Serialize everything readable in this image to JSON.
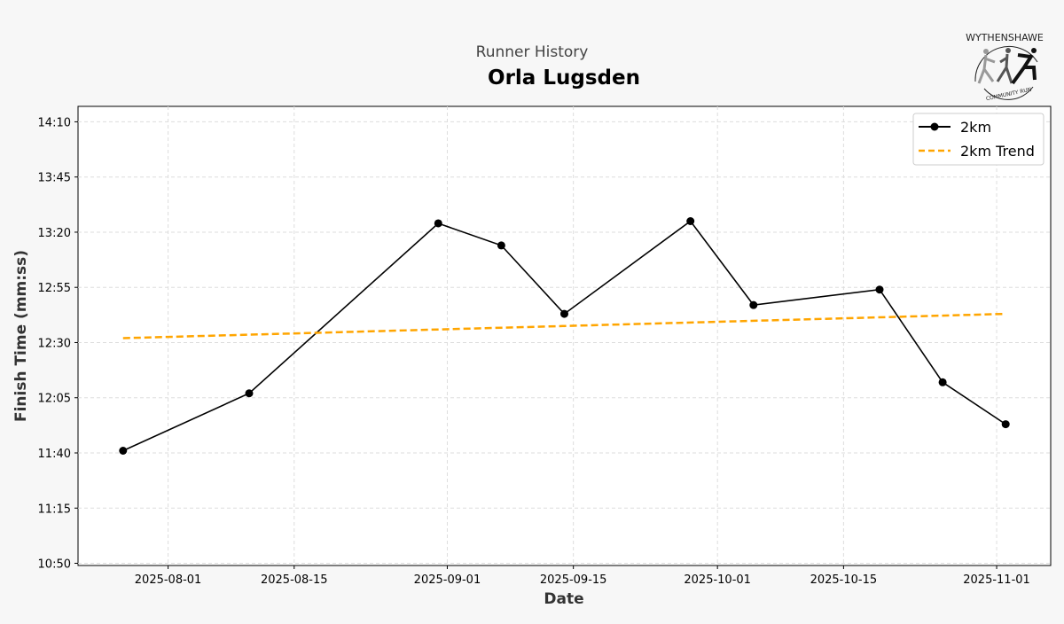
{
  "chart_data": {
    "type": "line",
    "suptitle": "Runner History",
    "title": "Orla Lugsden",
    "xlabel": "Date",
    "ylabel": "Finish Time (mm:ss)",
    "xlim": [
      "2025-07-22",
      "2025-11-07"
    ],
    "ylim": [
      "10:49",
      "14:17"
    ],
    "x_ticks": [
      "2025-08-01",
      "2025-08-15",
      "2025-09-01",
      "2025-09-15",
      "2025-10-01",
      "2025-10-15",
      "2025-11-01"
    ],
    "y_ticks": [
      "10:50",
      "11:15",
      "11:40",
      "12:05",
      "12:30",
      "12:55",
      "13:20",
      "13:45",
      "14:10"
    ],
    "grid": true,
    "legend_position": "top-right",
    "series": [
      {
        "name": "2km",
        "color": "#000000",
        "style": "solid-marker",
        "x": [
          "2025-07-27",
          "2025-08-10",
          "2025-08-31",
          "2025-09-07",
          "2025-09-14",
          "2025-09-28",
          "2025-10-05",
          "2025-10-19",
          "2025-10-26",
          "2025-11-02"
        ],
        "y": [
          "11:41",
          "12:07",
          "13:24",
          "13:14",
          "12:43",
          "13:25",
          "12:47",
          "12:54",
          "12:12",
          "11:53"
        ]
      },
      {
        "name": "2km Trend",
        "color": "#ffa500",
        "style": "dashed",
        "x": [
          "2025-07-27",
          "2025-11-02"
        ],
        "y": [
          "12:32",
          "12:43"
        ]
      }
    ]
  },
  "logo": {
    "text_top": "WYTHENSHAWE",
    "text_bottom": "COMMUNITY RUN"
  }
}
